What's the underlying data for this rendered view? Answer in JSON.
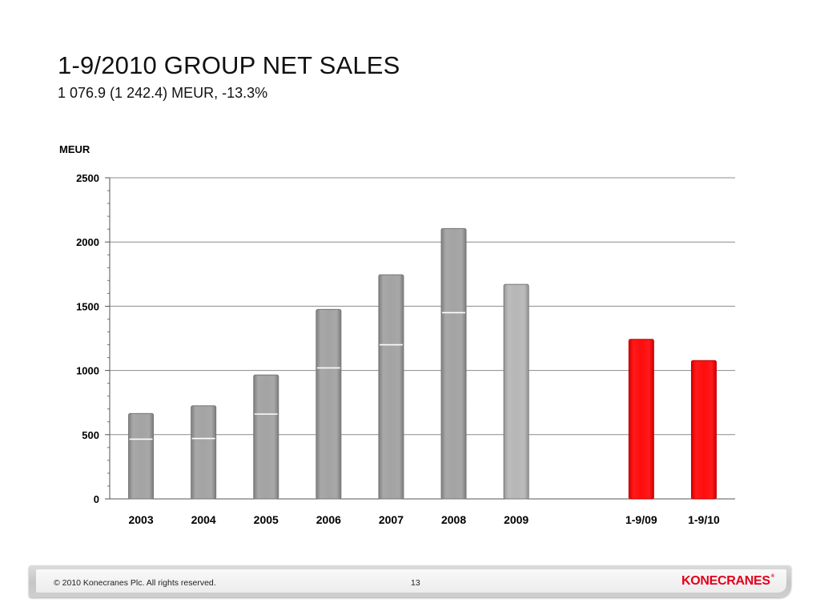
{
  "slide": {
    "title": "1-9/2010 GROUP NET SALES",
    "subtitle": "1 076.9 (1 242.4) MEUR, -13.3%"
  },
  "chart_data": {
    "type": "bar",
    "title": "",
    "ylabel": "MEUR",
    "xlabel": "",
    "ylim": [
      0,
      2500
    ],
    "yticks": [
      0,
      500,
      1000,
      1500,
      2000,
      2500
    ],
    "grid": true,
    "legend": "none",
    "categories": [
      "2003",
      "2004",
      "2005",
      "2006",
      "2007",
      "2008",
      "2009",
      "",
      "1-9/09",
      "1-9/10"
    ],
    "values": [
      665,
      725,
      965,
      1475,
      1745,
      2105,
      1670,
      null,
      1242.4,
      1076.9
    ],
    "inner_marks": [
      465,
      470,
      660,
      1020,
      1200,
      1450,
      null,
      null,
      null,
      null
    ],
    "bar_colors": [
      "#9a9a9a",
      "#9a9a9a",
      "#9a9a9a",
      "#9a9a9a",
      "#9a9a9a",
      "#9a9a9a",
      "#b4b4b4",
      null,
      "#ff0000",
      "#ff0000"
    ]
  },
  "footer": {
    "copyright": "© 2010 Konecranes Plc. All rights reserved.",
    "page_number": "13",
    "brand": "KONECRANES",
    "brand_mark": "®"
  },
  "colors": {
    "accent_red": "#ff0000",
    "logo_red": "#e3001b",
    "bar_gray": "#9a9a9a",
    "bar_light_gray": "#b4b4b4",
    "gridline": "#8c8c8c"
  }
}
